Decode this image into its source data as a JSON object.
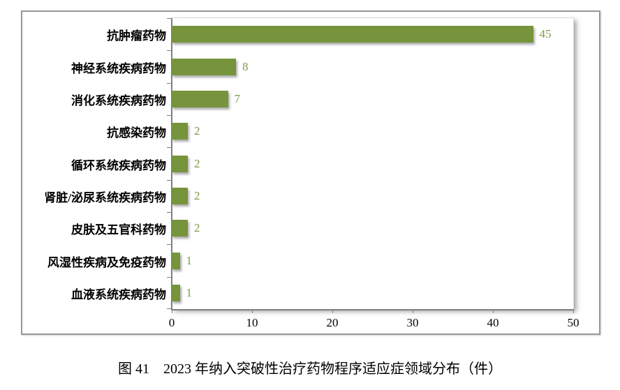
{
  "chart_data": {
    "type": "bar",
    "orientation": "horizontal",
    "title": "",
    "caption": "图 41　2023 年纳入突破性治疗药物程序适应症领域分布（件）",
    "categories": [
      "抗肿瘤药物",
      "神经系统疾病药物",
      "消化系统疾病药物",
      "抗感染药物",
      "循环系统疾病药物",
      "肾脏/泌尿系统疾病药物",
      "皮肤及五官科药物",
      "风湿性疾病及免疫药物",
      "血液系统疾病药物"
    ],
    "values": [
      45,
      8,
      7,
      2,
      2,
      2,
      2,
      1,
      1
    ],
    "xlabel": "",
    "ylabel": "",
    "xlim": [
      0,
      50
    ],
    "x_ticks": [
      0,
      10,
      20,
      30,
      40,
      50
    ],
    "grid": false,
    "legend": "none",
    "bar_color": "#77933C",
    "value_label_color": "#7E9A4D",
    "axis_color": "#808080",
    "text_color": "#000000"
  }
}
